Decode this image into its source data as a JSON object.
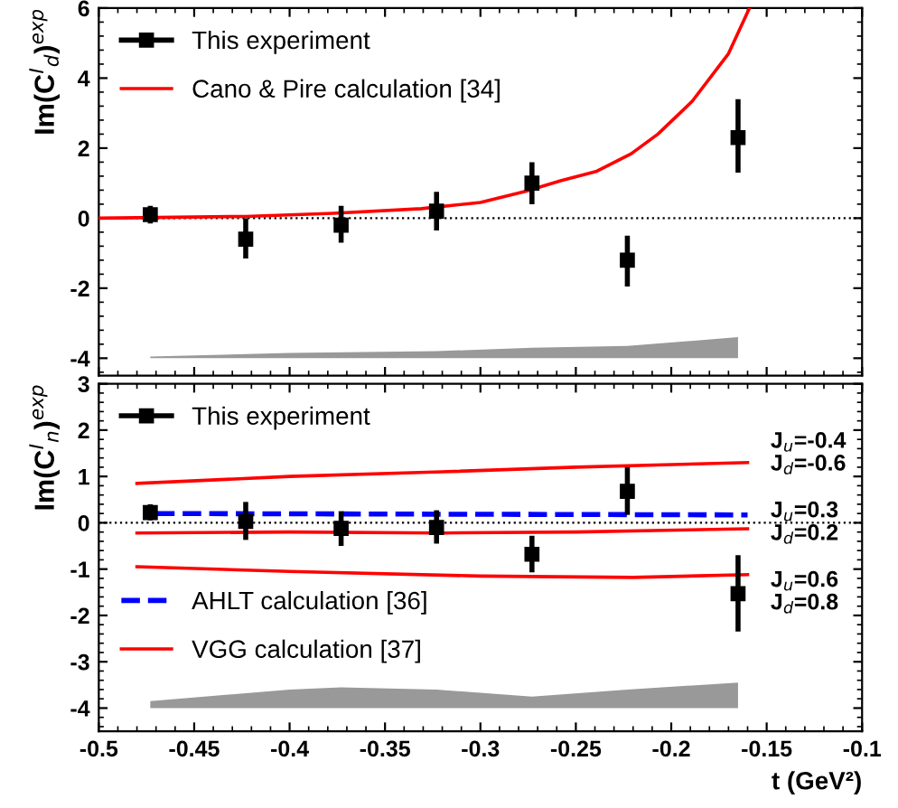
{
  "chart_data": [
    {
      "type": "scatter",
      "ylabel": "Im(C$^{I}$$_{d}$)$^{exp}$",
      "xlim": [
        -0.5,
        -0.1
      ],
      "ylim": [
        -4.5,
        6
      ],
      "xticks": [
        -0.5,
        -0.45,
        -0.4,
        -0.35,
        -0.3,
        -0.25,
        -0.2,
        -0.15,
        -0.1
      ],
      "yticks": [
        -4,
        -2,
        0,
        2,
        4,
        6
      ],
      "tick_labels": "y",
      "legend": "top left",
      "grid": false,
      "ref_lines": [
        {
          "axis": "y",
          "value": 0,
          "label": null,
          "color": "#000000",
          "line_style": "dotted"
        }
      ],
      "series": [
        {
          "name": "This experiment",
          "marker": "square",
          "color": "#000000",
          "x": [
            -0.473,
            -0.423,
            -0.373,
            -0.323,
            -0.273,
            -0.223,
            -0.165
          ],
          "values": [
            0.1,
            -0.6,
            -0.2,
            0.2,
            1.0,
            -1.2,
            2.3
          ],
          "errors": [
            [
              -0.15,
              0.35
            ],
            [
              -1.15,
              0.0
            ],
            [
              -0.7,
              0.35
            ],
            [
              -0.35,
              0.75
            ],
            [
              0.4,
              1.6
            ],
            [
              -1.95,
              -0.5
            ],
            [
              1.3,
              3.4
            ]
          ]
        },
        {
          "name": "Cano & Pire calculation [34]",
          "type": "line",
          "line_style": "solid",
          "color": "#ff0000",
          "x": [
            -0.5,
            -0.423,
            -0.377,
            -0.331,
            -0.3,
            -0.276,
            -0.258,
            -0.239,
            -0.221,
            -0.207,
            -0.189,
            -0.17,
            -0.159
          ],
          "values": [
            0.0,
            0.05,
            0.14,
            0.27,
            0.45,
            0.77,
            1.07,
            1.34,
            1.84,
            2.4,
            3.34,
            4.7,
            6.0
          ]
        },
        {
          "type": "line",
          "color": "#999999",
          "x": [
            -0.473,
            -0.4,
            -0.323,
            -0.273,
            -0.223,
            -0.165
          ],
          "values": [
            null,
            null,
            null,
            null,
            null,
            null
          ],
          "lower": [
            -4.0,
            -4.0,
            -4.0,
            -4.0,
            -4.0,
            -4.0
          ],
          "upper": [
            -3.95,
            -3.85,
            -3.8,
            -3.7,
            -3.65,
            -3.4
          ]
        }
      ]
    },
    {
      "type": "scatter",
      "ylabel": "Im(C$^{I}$$_{n}$)$^{exp}$",
      "xlabel": "t (GeV²)",
      "xlim": [
        -0.5,
        -0.1
      ],
      "ylim": [
        -4.5,
        3
      ],
      "xticks": [
        -0.5,
        -0.45,
        -0.4,
        -0.35,
        -0.3,
        -0.25,
        -0.2,
        -0.15,
        -0.1
      ],
      "yticks": [
        -4,
        -3,
        -2,
        -1,
        0,
        1,
        2,
        3
      ],
      "legend": "left",
      "grid": false,
      "ref_lines": [
        {
          "axis": "y",
          "value": 0,
          "label": null,
          "color": "#000000",
          "line_style": "dotted"
        }
      ],
      "annotations": [
        "J$_{u}$=-0.4\nJ$_{d}$=-0.6",
        "J$_{u}$=0.3\nJ$_{d}$=0.2",
        "J$_{u}$=0.6\nJ$_{d}$=0.8"
      ],
      "series": [
        {
          "name": "This experiment",
          "marker": "square",
          "color": "#000000",
          "x": [
            -0.473,
            -0.423,
            -0.373,
            -0.323,
            -0.273,
            -0.223,
            -0.165
          ],
          "values": [
            0.22,
            0.03,
            -0.12,
            -0.1,
            -0.68,
            0.68,
            -1.53
          ],
          "errors": [
            [
              0.05,
              0.4
            ],
            [
              -0.37,
              0.45
            ],
            [
              -0.5,
              0.25
            ],
            [
              -0.45,
              0.27
            ],
            [
              -1.07,
              -0.28
            ],
            [
              0.17,
              1.2
            ],
            [
              -2.35,
              -0.7
            ]
          ]
        },
        {
          "name": "AHLT calculation [36]",
          "type": "line",
          "line_style": "dashed",
          "color": "#0000ff",
          "x": [
            -0.47,
            -0.16
          ],
          "values": [
            0.2,
            0.17
          ]
        },
        {
          "name": "VGG calculation [37]",
          "type": "line",
          "line_style": "solid",
          "color": "#ff0000",
          "x": [
            -0.48,
            -0.4,
            -0.32,
            -0.25,
            -0.16
          ],
          "values": [
            0.85,
            1.0,
            1.1,
            1.2,
            1.3
          ]
        },
        {
          "type": "line",
          "line_style": "solid",
          "color": "#ff0000",
          "x": [
            -0.48,
            -0.4,
            -0.32,
            -0.25,
            -0.16
          ],
          "values": [
            -0.22,
            -0.2,
            -0.22,
            -0.2,
            -0.13
          ]
        },
        {
          "type": "line",
          "line_style": "solid",
          "color": "#ff0000",
          "x": [
            -0.48,
            -0.4,
            -0.3,
            -0.22,
            -0.16
          ],
          "values": [
            -0.95,
            -1.05,
            -1.15,
            -1.18,
            -1.12
          ]
        },
        {
          "type": "line",
          "color": "#999999",
          "x": [
            -0.473,
            -0.4,
            -0.373,
            -0.323,
            -0.273,
            -0.223,
            -0.165
          ],
          "values": [
            null,
            null,
            null,
            null,
            null,
            null,
            null
          ],
          "lower": [
            -4.0,
            -4.0,
            -4.0,
            -4.0,
            -4.0,
            -4.0,
            -4.0
          ],
          "upper": [
            -3.85,
            -3.6,
            -3.55,
            -3.6,
            -3.75,
            -3.6,
            -3.45
          ]
        }
      ]
    }
  ]
}
